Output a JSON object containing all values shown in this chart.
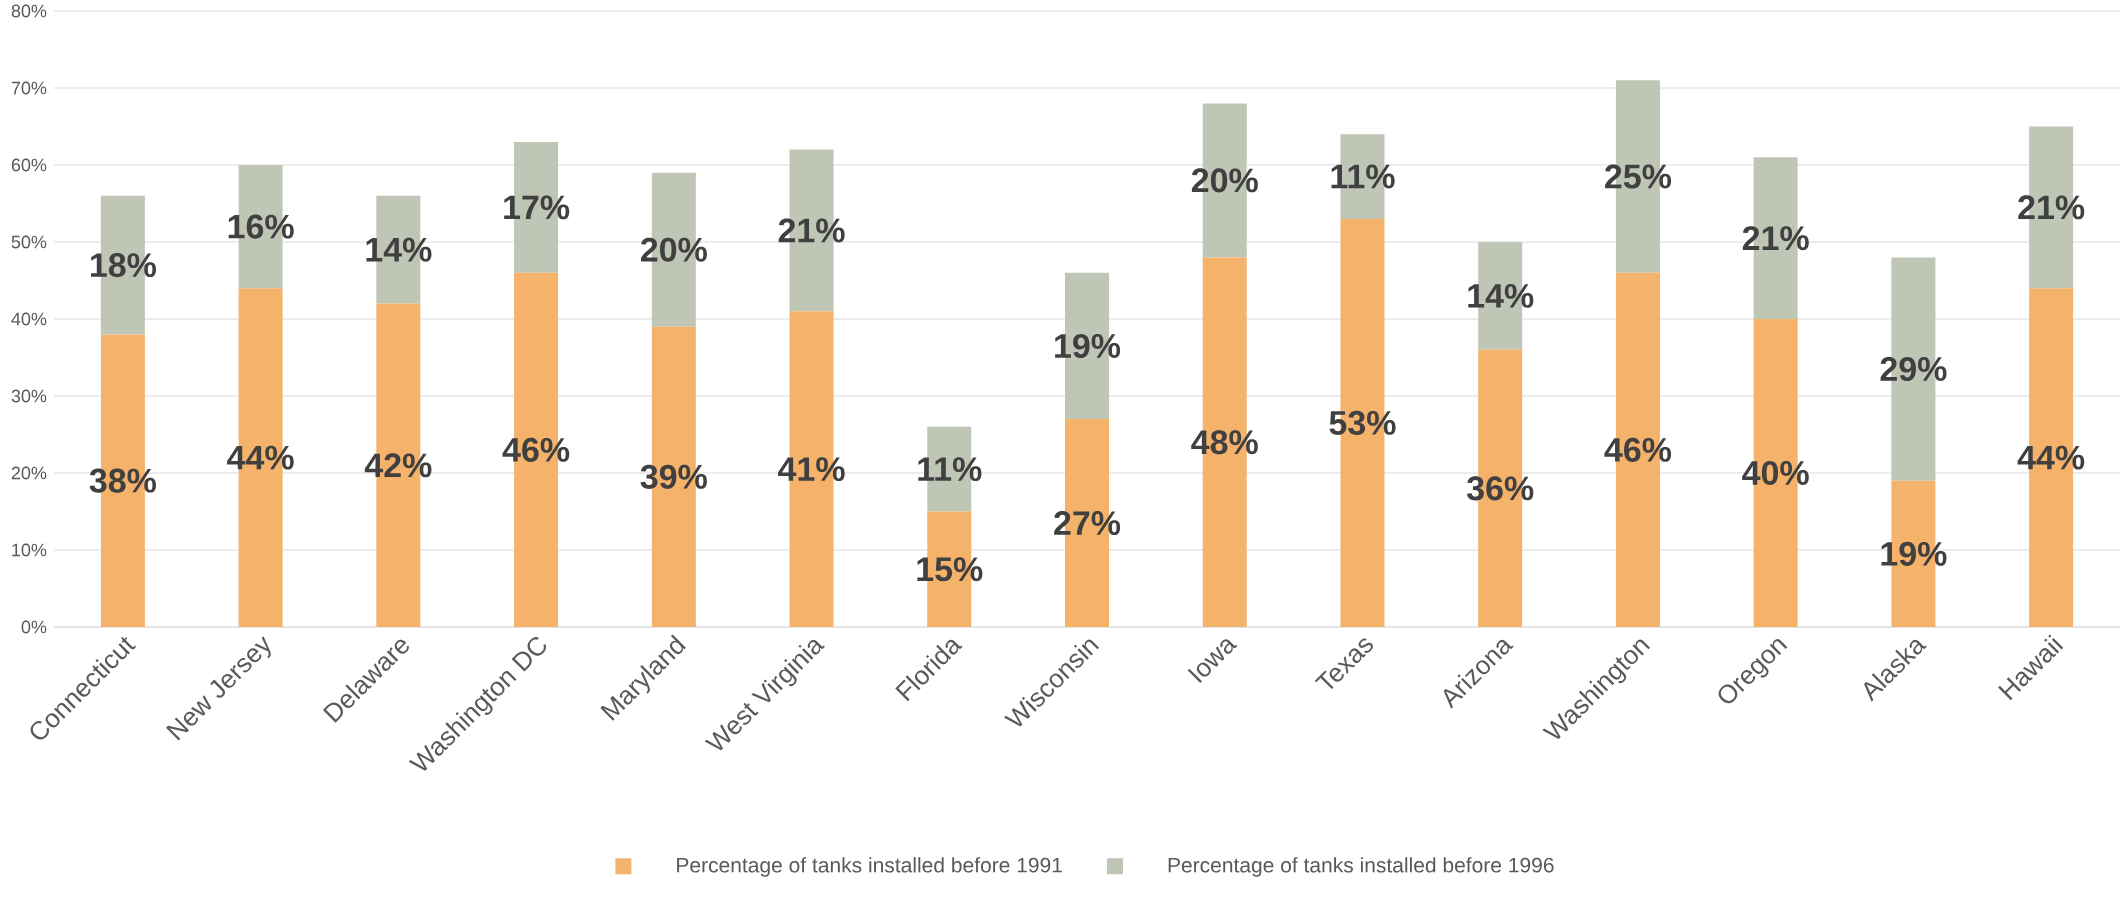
{
  "chart_data": {
    "type": "bar",
    "stacked": true,
    "categories": [
      "Connecticut",
      "New Jersey",
      "Delaware",
      "Washington DC",
      "Maryland",
      "West Virginia",
      "Florida",
      "Wisconsin",
      "Iowa",
      "Texas",
      "Arizona",
      "Washington",
      "Oregon",
      "Alaska",
      "Hawaii"
    ],
    "series": [
      {
        "name": "Percentage of tanks installed before 1991",
        "color": "#f4b26b",
        "values": [
          38,
          44,
          42,
          46,
          39,
          41,
          15,
          27,
          48,
          53,
          36,
          46,
          40,
          19,
          44
        ],
        "value_labels": [
          "38%",
          "44%",
          "42%",
          "46%",
          "39%",
          "41%",
          "15%",
          "27%",
          "48%",
          "53%",
          "36%",
          "46%",
          "40%",
          "19%",
          "44%"
        ]
      },
      {
        "name": "Percentage of tanks installed before 1996",
        "color": "#bfc6b6",
        "values": [
          18,
          16,
          14,
          17,
          20,
          21,
          11,
          19,
          20,
          11,
          14,
          25,
          21,
          29,
          21
        ],
        "value_labels": [
          "18%",
          "16%",
          "14%",
          "17%",
          "20%",
          "21%",
          "11%",
          "19%",
          "20%",
          "11%",
          "14%",
          "25%",
          "21%",
          "29%",
          "21%"
        ]
      }
    ],
    "ylim": [
      0,
      80
    ],
    "yticks": [
      {
        "value": 0,
        "label": "0%"
      },
      {
        "value": 10,
        "label": "10%"
      },
      {
        "value": 20,
        "label": "20%"
      },
      {
        "value": 30,
        "label": "30%"
      },
      {
        "value": 40,
        "label": "40%"
      },
      {
        "value": 50,
        "label": "50%"
      },
      {
        "value": 60,
        "label": "60%"
      },
      {
        "value": 70,
        "label": "70%"
      },
      {
        "value": 80,
        "label": "80%"
      }
    ],
    "grid": "y",
    "legend": "bottom"
  }
}
